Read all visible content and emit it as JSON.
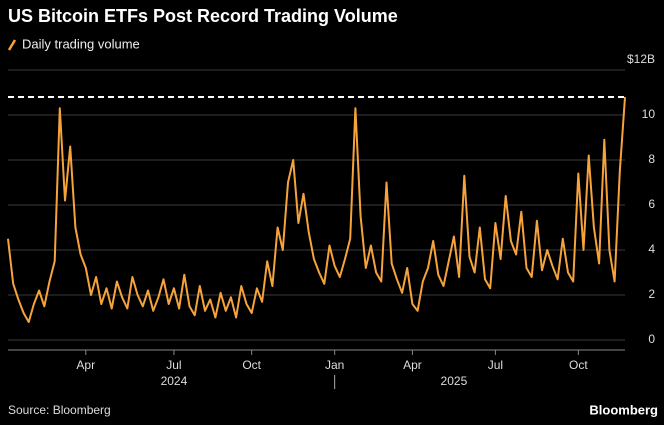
{
  "chart_data": {
    "type": "line",
    "title": "US Bitcoin ETFs Post Record Trading Volume",
    "source": "Source: Bloomberg",
    "brand": "Bloomberg",
    "categories": [
      null,
      null,
      null,
      null,
      null,
      null,
      null,
      null,
      null,
      null,
      null,
      null,
      null,
      null,
      null,
      "Apr",
      null,
      null,
      null,
      null,
      null,
      null,
      null,
      null,
      null,
      null,
      null,
      null,
      null,
      null,
      null,
      null,
      "Jul",
      null,
      null,
      null,
      null,
      null,
      null,
      null,
      null,
      null,
      null,
      null,
      null,
      null,
      null,
      "Oct",
      null,
      null,
      null,
      null,
      null,
      null,
      null,
      null,
      null,
      null,
      null,
      null,
      null,
      null,
      null,
      "Jan",
      null,
      null,
      null,
      null,
      null,
      null,
      null,
      null,
      null,
      null,
      null,
      null,
      null,
      null,
      "Apr",
      null,
      null,
      null,
      null,
      null,
      null,
      null,
      null,
      null,
      null,
      null,
      null,
      null,
      null,
      null,
      "Jul",
      null,
      null,
      null,
      null,
      null,
      null,
      null,
      null,
      null,
      null,
      null,
      null,
      null,
      null,
      null,
      "Oct",
      null,
      null,
      null,
      null,
      null,
      null,
      null,
      null,
      null
    ],
    "year_labels": [
      "2024",
      "2025"
    ],
    "series": [
      {
        "name": "Daily trading volume",
        "color": "#f7a33c",
        "values": [
          4.5,
          2.5,
          1.8,
          1.2,
          0.8,
          1.6,
          2.2,
          1.5,
          2.6,
          3.5,
          10.3,
          6.2,
          8.6,
          5.0,
          3.8,
          3.2,
          2.0,
          2.8,
          1.6,
          2.3,
          1.4,
          2.6,
          1.9,
          1.4,
          2.8,
          2.0,
          1.5,
          2.2,
          1.3,
          1.9,
          2.7,
          1.6,
          2.3,
          1.4,
          2.9,
          1.5,
          1.1,
          2.4,
          1.3,
          1.8,
          1.0,
          2.1,
          1.3,
          1.9,
          1.0,
          2.4,
          1.6,
          1.2,
          2.3,
          1.7,
          3.5,
          2.4,
          5.0,
          4.0,
          7.0,
          8.0,
          5.2,
          6.5,
          4.8,
          3.6,
          3.0,
          2.5,
          4.2,
          3.3,
          2.8,
          3.6,
          4.5,
          10.3,
          5.5,
          3.2,
          4.2,
          3.0,
          2.6,
          7.0,
          3.4,
          2.7,
          2.1,
          3.2,
          1.6,
          1.3,
          2.6,
          3.2,
          4.4,
          2.9,
          2.4,
          3.5,
          4.6,
          2.8,
          7.3,
          3.7,
          3.0,
          5.0,
          2.7,
          2.3,
          5.2,
          3.6,
          6.4,
          4.4,
          3.8,
          5.7,
          3.2,
          2.8,
          5.3,
          3.1,
          4.0,
          3.3,
          2.7,
          4.5,
          3.0,
          2.6,
          7.4,
          4.0,
          8.2,
          5.0,
          3.4,
          8.9,
          4.0,
          2.6,
          7.5,
          10.8
        ]
      }
    ],
    "reference_line": 10.8,
    "ylim": [
      0,
      12
    ],
    "yticks": [
      0,
      2,
      4,
      6,
      8,
      10,
      {
        "value": 12,
        "label": "$12B"
      }
    ],
    "grid": true
  }
}
